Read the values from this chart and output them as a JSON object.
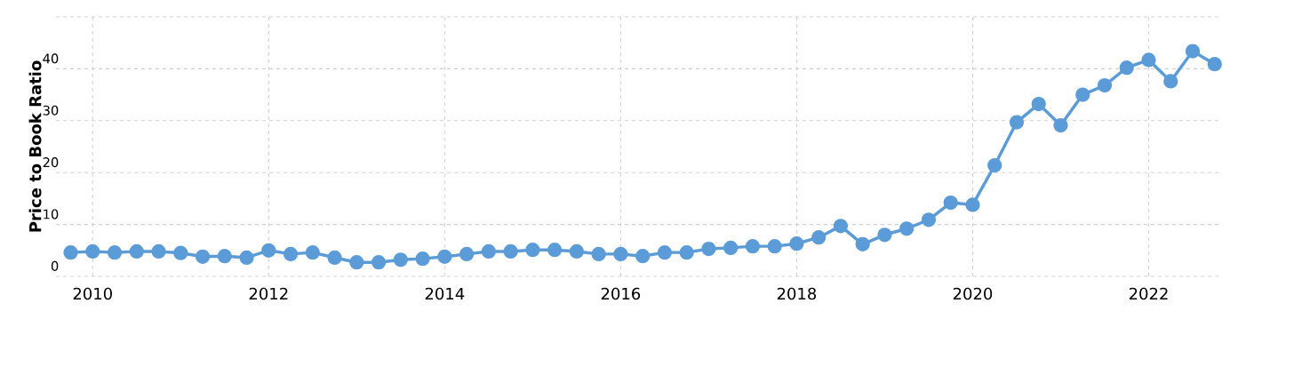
{
  "chart_data": {
    "type": "line",
    "ylabel": "Price to Book Ratio",
    "x": [
      "2009-10",
      "2010-01",
      "2010-04",
      "2010-07",
      "2010-10",
      "2011-01",
      "2011-04",
      "2011-07",
      "2011-10",
      "2012-01",
      "2012-04",
      "2012-07",
      "2012-10",
      "2013-01",
      "2013-04",
      "2013-07",
      "2013-10",
      "2014-01",
      "2014-04",
      "2014-07",
      "2014-10",
      "2015-01",
      "2015-04",
      "2015-07",
      "2015-10",
      "2016-01",
      "2016-04",
      "2016-07",
      "2016-10",
      "2017-01",
      "2017-04",
      "2017-07",
      "2017-10",
      "2018-01",
      "2018-04",
      "2018-07",
      "2018-10",
      "2019-01",
      "2019-04",
      "2019-07",
      "2019-10",
      "2020-01",
      "2020-04",
      "2020-07",
      "2020-10",
      "2021-01",
      "2021-04",
      "2021-07",
      "2021-10",
      "2022-01",
      "2022-04",
      "2022-07",
      "2022-10"
    ],
    "series": [
      {
        "color": "#5b9bd7",
        "values": [
          4.6,
          4.8,
          4.6,
          4.8,
          4.8,
          4.5,
          3.8,
          3.9,
          3.6,
          5.0,
          4.3,
          4.6,
          3.6,
          2.7,
          2.7,
          3.2,
          3.4,
          3.8,
          4.3,
          4.8,
          4.8,
          5.1,
          5.1,
          4.8,
          4.3,
          4.3,
          3.9,
          4.6,
          4.6,
          5.3,
          5.5,
          5.8,
          5.8,
          6.3,
          7.5,
          9.7,
          6.2,
          8.0,
          9.2,
          10.9,
          14.2,
          13.8,
          21.4,
          29.7,
          33.2,
          29.1,
          35.0,
          36.8,
          40.2,
          41.7,
          37.6,
          43.4,
          40.9
        ]
      }
    ],
    "xlim": [
      "2009-08",
      "2022-11"
    ],
    "xticks": [
      "2010",
      "2012",
      "2014",
      "2016",
      "2018",
      "2020",
      "2022"
    ],
    "ylim": [
      0,
      50
    ],
    "yticks": [
      0,
      10,
      20,
      30,
      40,
      {
        "value": 50,
        "label": null
      }
    ],
    "grid": true,
    "marker": "circle",
    "line_style": "solid",
    "legend": false
  }
}
